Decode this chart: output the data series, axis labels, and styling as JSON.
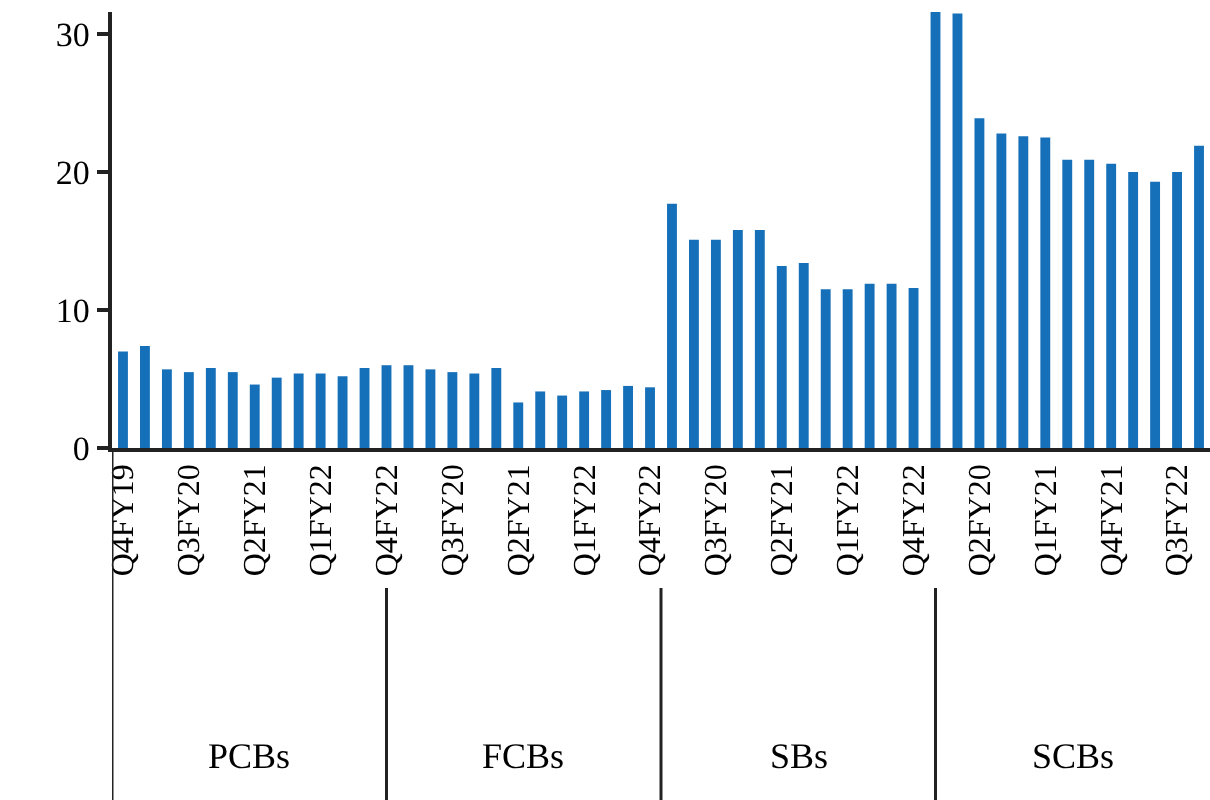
{
  "chart_data": {
    "type": "bar",
    "categories": [
      "Q4FY19",
      null,
      null,
      "Q3FY20",
      null,
      null,
      "Q2FY21",
      null,
      null,
      "Q1FY22",
      null,
      null,
      "Q4FY22",
      null,
      null,
      "Q3FY20",
      null,
      null,
      "Q2FY21",
      null,
      null,
      "Q1FY22",
      null,
      null,
      "Q4FY22",
      null,
      null,
      "Q3FY20",
      null,
      null,
      "Q2FY21",
      null,
      null,
      "Q1FY22",
      null,
      null,
      "Q4FY22",
      null,
      null,
      "Q2FY20",
      null,
      null,
      "Q1FY21",
      null,
      null,
      "Q4FY21",
      null,
      null,
      "Q3FY22",
      null
    ],
    "values": [
      7.0,
      7.4,
      5.7,
      5.5,
      5.8,
      5.5,
      4.6,
      5.1,
      5.4,
      5.4,
      5.2,
      5.8,
      6.0,
      6.0,
      5.7,
      5.5,
      5.4,
      5.8,
      3.3,
      4.1,
      3.8,
      4.1,
      4.2,
      4.5,
      4.4,
      17.7,
      15.1,
      15.1,
      15.8,
      15.8,
      13.2,
      13.4,
      11.5,
      11.5,
      11.9,
      11.9,
      11.6,
      31.6,
      31.5,
      23.9,
      22.8,
      22.6,
      22.5,
      20.9,
      20.9,
      20.6,
      20.0,
      19.3,
      20.0,
      21.9
    ],
    "color": "#1670b9",
    "ylim": [
      0,
      31.6
    ],
    "yticks": [
      0,
      10,
      20,
      30
    ],
    "grid": false,
    "legend": false,
    "annotations": [
      "PCBs",
      "FCBs",
      "SBs",
      "SCBs"
    ]
  }
}
